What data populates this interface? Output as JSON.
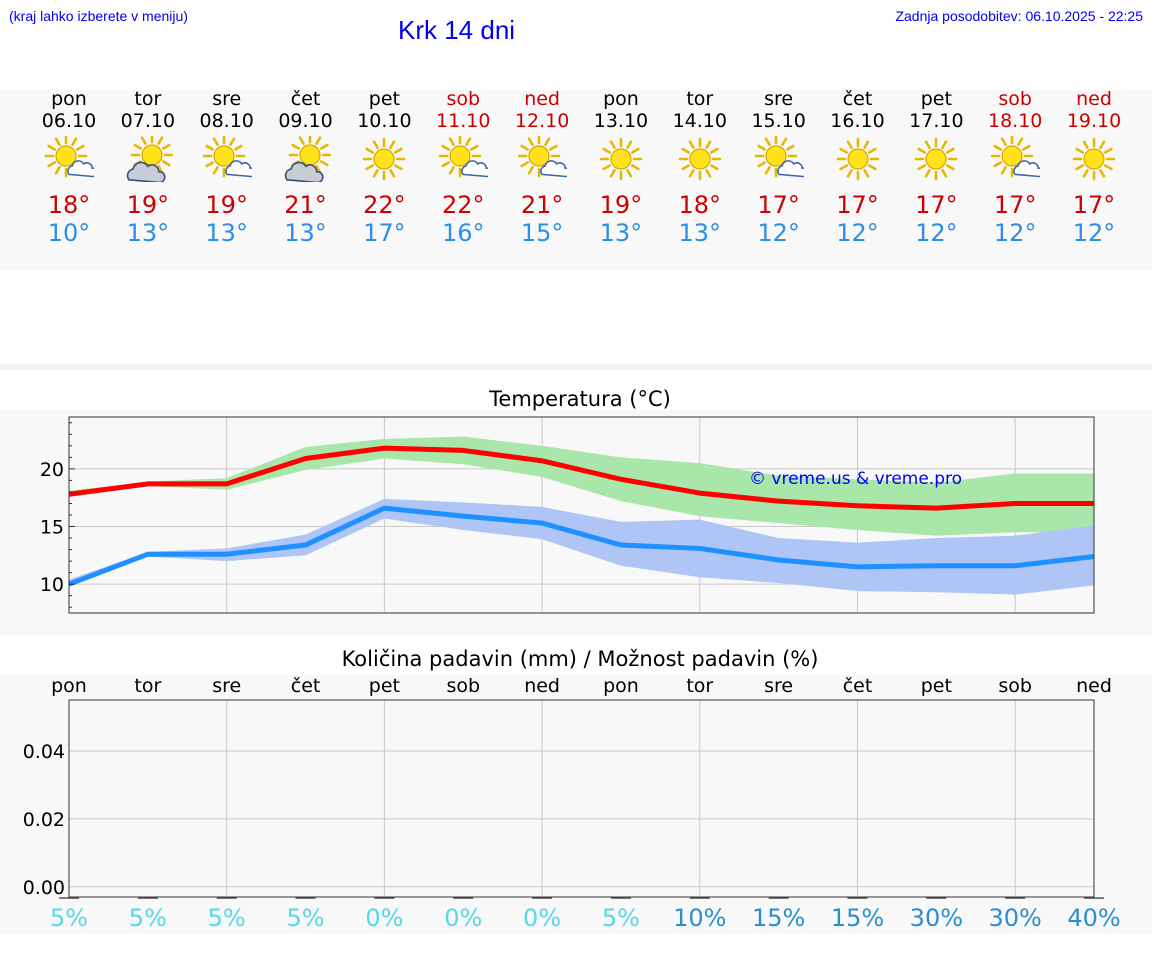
{
  "header": {
    "hint": "(kraj lahko izberete v meniju)",
    "title": "Krk 14 dni",
    "updated": "Zadnja posodobitev: 06.10.2025 - 22:25"
  },
  "colors": {
    "max_temp": "#cc0000",
    "min_temp": "#2b8ee8",
    "max_line": "#ff0000",
    "max_band": "#a9e6a9",
    "min_line": "#1e90ff",
    "min_band": "#aec5f5",
    "weekend": "#cc0000",
    "chance_low": "#55d8e8",
    "chance_high": "#2b8ecf",
    "link": "#0000ee"
  },
  "days": [
    {
      "name": "pon",
      "date": "06.10",
      "weekend": false,
      "icon": "sun-cloud-icon",
      "max": "18°",
      "min": "10°"
    },
    {
      "name": "tor",
      "date": "07.10",
      "weekend": false,
      "icon": "cloud-sun-icon",
      "max": "19°",
      "min": "13°"
    },
    {
      "name": "sre",
      "date": "08.10",
      "weekend": false,
      "icon": "sun-cloud-icon",
      "max": "19°",
      "min": "13°"
    },
    {
      "name": "čet",
      "date": "09.10",
      "weekend": false,
      "icon": "cloud-sun-icon",
      "max": "21°",
      "min": "13°"
    },
    {
      "name": "pet",
      "date": "10.10",
      "weekend": false,
      "icon": "sun-icon",
      "max": "22°",
      "min": "17°"
    },
    {
      "name": "sob",
      "date": "11.10",
      "weekend": true,
      "icon": "sun-cloud-icon",
      "max": "22°",
      "min": "16°"
    },
    {
      "name": "ned",
      "date": "12.10",
      "weekend": true,
      "icon": "sun-cloud-icon",
      "max": "21°",
      "min": "15°"
    },
    {
      "name": "pon",
      "date": "13.10",
      "weekend": false,
      "icon": "sun-icon",
      "max": "19°",
      "min": "13°"
    },
    {
      "name": "tor",
      "date": "14.10",
      "weekend": false,
      "icon": "sun-icon",
      "max": "18°",
      "min": "13°"
    },
    {
      "name": "sre",
      "date": "15.10",
      "weekend": false,
      "icon": "sun-cloud-icon",
      "max": "17°",
      "min": "12°"
    },
    {
      "name": "čet",
      "date": "16.10",
      "weekend": false,
      "icon": "sun-icon",
      "max": "17°",
      "min": "12°"
    },
    {
      "name": "pet",
      "date": "17.10",
      "weekend": false,
      "icon": "sun-icon",
      "max": "17°",
      "min": "12°"
    },
    {
      "name": "sob",
      "date": "18.10",
      "weekend": true,
      "icon": "sun-cloud-icon",
      "max": "17°",
      "min": "12°"
    },
    {
      "name": "ned",
      "date": "19.10",
      "weekend": true,
      "icon": "sun-icon",
      "max": "17°",
      "min": "12°"
    }
  ],
  "chart_data": [
    {
      "type": "line",
      "title": "Temperatura (°C)",
      "xlabel": "",
      "ylabel": "",
      "x": [
        0,
        1,
        2,
        3,
        4,
        5,
        6,
        7,
        8,
        9,
        10,
        11,
        12,
        13
      ],
      "ylim": [
        7.5,
        24.5
      ],
      "yticks": [
        10,
        15,
        20
      ],
      "series": [
        {
          "name": "max",
          "values": [
            17.8,
            18.7,
            18.7,
            20.9,
            21.8,
            21.6,
            20.7,
            19.1,
            17.9,
            17.2,
            16.8,
            16.6,
            17.0,
            17.0
          ],
          "band_low": [
            17.6,
            18.5,
            18.2,
            19.9,
            20.9,
            20.4,
            19.3,
            17.2,
            15.9,
            15.3,
            14.7,
            14.2,
            14.5,
            14.5
          ],
          "band_high": [
            18.1,
            18.9,
            19.2,
            21.9,
            22.6,
            22.8,
            22.0,
            21.0,
            20.5,
            19.4,
            19.1,
            18.8,
            19.6,
            19.6
          ]
        },
        {
          "name": "min",
          "values": [
            10.0,
            12.6,
            12.6,
            13.4,
            16.6,
            15.9,
            15.3,
            13.4,
            13.1,
            12.1,
            11.5,
            11.6,
            11.6,
            12.4
          ],
          "band_low": [
            9.8,
            12.4,
            12.0,
            12.5,
            15.7,
            14.7,
            13.9,
            11.6,
            10.6,
            10.1,
            9.4,
            9.3,
            9.1,
            9.9
          ],
          "band_high": [
            10.4,
            12.8,
            13.1,
            14.3,
            17.4,
            17.1,
            16.7,
            15.4,
            15.6,
            14.0,
            13.6,
            14.0,
            14.2,
            15.1
          ]
        }
      ],
      "annotation": "© vreme.us & vreme.pro",
      "grid": true
    },
    {
      "type": "bar",
      "title": "Količina padavin (mm) / Možnost padavin (%)",
      "categories": [
        "pon",
        "tor",
        "sre",
        "čet",
        "pet",
        "sob",
        "ned",
        "pon",
        "tor",
        "sre",
        "čet",
        "pet",
        "sob",
        "ned"
      ],
      "values": [
        0,
        0,
        0,
        0,
        0,
        0,
        0,
        0,
        0,
        0,
        0,
        0,
        0,
        0
      ],
      "chance_percent": [
        "5%",
        "5%",
        "5%",
        "5%",
        "0%",
        "0%",
        "0%",
        "5%",
        "10%",
        "15%",
        "15%",
        "30%",
        "30%",
        "40%"
      ],
      "ylim": [
        -0.003,
        0.055
      ],
      "yticks": [
        "0.00",
        "0.02",
        "0.04"
      ],
      "grid": true
    }
  ]
}
